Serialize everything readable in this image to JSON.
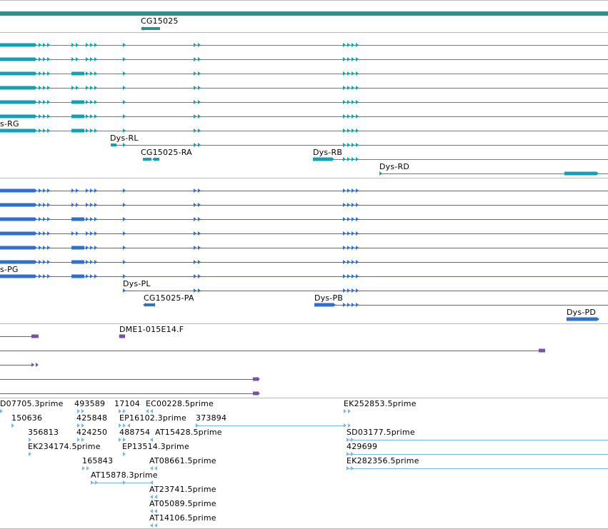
{
  "colors": {
    "gene": "#2f8f8f",
    "transcript": "#13a0b4",
    "protein": "#2f6fd0",
    "cdna": "#7a4fa6",
    "est": "#7ab6de",
    "separator": "#bcbcbc"
  },
  "gene_track": {
    "labels": [
      "CG15025"
    ]
  },
  "transcript_track": {
    "labels": [
      "s-RG",
      "Dys-RL",
      "CG15025-RA",
      "Dys-RB",
      "Dys-RD"
    ]
  },
  "protein_track": {
    "labels": [
      "s-PG",
      "Dys-PL",
      "CG15025-PA",
      "Dys-PB",
      "Dys-PD"
    ]
  },
  "cdna_track": {
    "labels": [
      "DME1-015E14.F"
    ]
  },
  "est_track": {
    "labels": [
      "D07705.3prime",
      "493589",
      "17104",
      "EC00228.5prime",
      "EK252853.5prime",
      "150636",
      "425848",
      "EP16102.3prime",
      "373894",
      "356813",
      "424250",
      "488754",
      "AT15428.5prime",
      "SD03177.5prime",
      "EK234174.5prime",
      "EP13514.3prime",
      "429699",
      "165843",
      "AT08661.5prime",
      "EK282356.5prime",
      "AT15878.3prime",
      "AT23741.5prime",
      "AT05089.5prime",
      "AT14106.5prime"
    ]
  }
}
